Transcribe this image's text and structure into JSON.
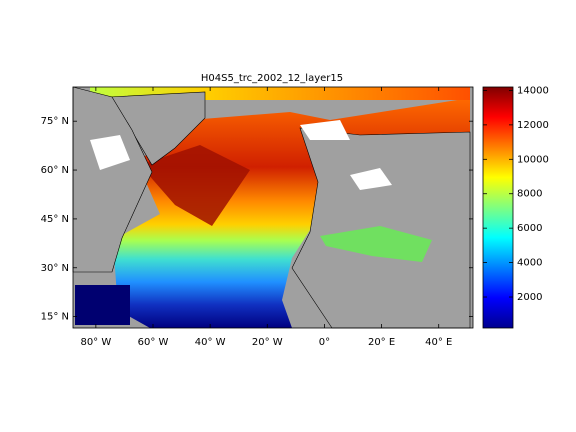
{
  "chart_data": {
    "type": "map",
    "title": "H04S5_trc_2002_12_layer15",
    "xlim": [
      -88,
      52
    ],
    "xticks": [
      {
        "value": -80,
        "label": "80° W"
      },
      {
        "value": -60,
        "label": "60° W"
      },
      {
        "value": -40,
        "label": "40° W"
      },
      {
        "value": -20,
        "label": "20° W"
      },
      {
        "value": 0,
        "label": "0°"
      },
      {
        "value": 20,
        "label": "20° E"
      },
      {
        "value": 40,
        "label": "40° E"
      }
    ],
    "ylim": [
      11.5,
      85.5
    ],
    "yticks": [
      {
        "value": 15,
        "label": "15° N"
      },
      {
        "value": 30,
        "label": "30° N"
      },
      {
        "value": 45,
        "label": "45° N"
      },
      {
        "value": 60,
        "label": "60° N"
      },
      {
        "value": 75,
        "label": "75° N"
      }
    ],
    "clim": [
      200,
      14200
    ],
    "cticks": [
      2000,
      4000,
      6000,
      8000,
      10000,
      12000,
      14000
    ],
    "colormap": "jet"
  }
}
